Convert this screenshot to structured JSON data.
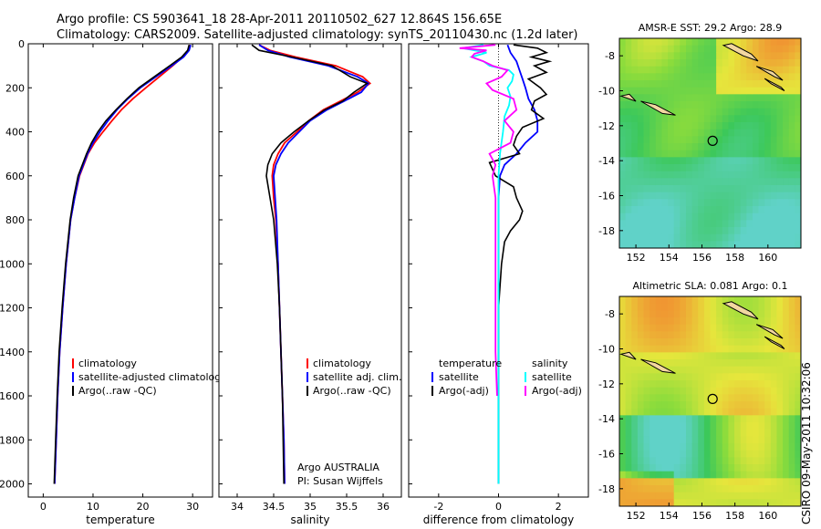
{
  "header": {
    "line1": "Argo profile: CS 5903641_18 28-Apr-2011 20110502_627 12.864S 156.65E",
    "line2": "Climatology: CARS2009. Satellite-adjusted climatology: synTS_20110430.nc (1.2d later)"
  },
  "side_stamp": "CSIRO 09-May-2011 10:32:06",
  "colors": {
    "climatology": "#ff0000",
    "satellite": "#0000ff",
    "argo": "#000000",
    "sal_sat": "#00ffff",
    "sal_argo": "#ff00ff",
    "marker": "#000000"
  },
  "chart_data": [
    {
      "id": "temperature",
      "type": "line",
      "xlabel": "temperature",
      "ylabel": "",
      "xlim": [
        -3,
        34
      ],
      "ylim": [
        2060,
        0
      ],
      "xticks": [
        0,
        10,
        20,
        30
      ],
      "yticks": [
        0,
        200,
        400,
        600,
        800,
        1000,
        1200,
        1400,
        1600,
        1800,
        2000
      ],
      "series": [
        {
          "name": "climatology",
          "color": "red",
          "depth": [
            5,
            30,
            60,
            100,
            150,
            200,
            250,
            300,
            350,
            400,
            450,
            500,
            600,
            700,
            800,
            1000,
            1200,
            1400,
            1600,
            1800,
            2000
          ],
          "values": [
            29.4,
            29.2,
            28.0,
            26.0,
            23.3,
            20.6,
            18.0,
            15.7,
            13.8,
            12.0,
            10.3,
            9.0,
            7.3,
            6.3,
            5.5,
            4.6,
            3.9,
            3.3,
            2.9,
            2.6,
            2.3
          ]
        },
        {
          "name": "satellite-adjusted climatology",
          "color": "blue",
          "depth": [
            5,
            30,
            60,
            100,
            150,
            200,
            250,
            300,
            350,
            400,
            450,
            500,
            600,
            700,
            800,
            1000,
            1200,
            1400,
            1600,
            1800,
            2000
          ],
          "values": [
            29.6,
            29.3,
            28.2,
            25.8,
            22.6,
            19.5,
            17.0,
            14.8,
            13.0,
            11.4,
            10.0,
            8.9,
            7.2,
            6.3,
            5.5,
            4.6,
            3.9,
            3.3,
            2.9,
            2.6,
            2.3
          ]
        },
        {
          "name": "Argo(..raw -QC)",
          "color": "black",
          "depth": [
            5,
            30,
            60,
            100,
            150,
            200,
            250,
            300,
            350,
            400,
            450,
            500,
            600,
            700,
            800,
            1000,
            1200,
            1400,
            1600,
            1800,
            2000
          ],
          "values": [
            29.3,
            29.0,
            27.8,
            25.4,
            22.3,
            19.2,
            16.8,
            14.6,
            12.6,
            11.0,
            9.7,
            8.7,
            7.0,
            6.1,
            5.4,
            4.5,
            3.8,
            3.2,
            2.8,
            2.5,
            2.2
          ]
        }
      ],
      "legend": [
        "climatology",
        "satellite-adjusted climatology",
        "Argo(..raw -QC)"
      ]
    },
    {
      "id": "salinity",
      "type": "line",
      "xlabel": "salinity",
      "ylabel": "",
      "xlim": [
        33.75,
        36.25
      ],
      "ylim": [
        2060,
        0
      ],
      "xticks": [
        34,
        34.5,
        35,
        35.5,
        36
      ],
      "yticks": [],
      "series": [
        {
          "name": "climatology",
          "color": "red",
          "depth": [
            5,
            30,
            60,
            100,
            150,
            180,
            220,
            260,
            300,
            350,
            400,
            450,
            500,
            550,
            600,
            700,
            800,
            1000,
            1200,
            1400,
            1600,
            1800,
            2000
          ],
          "values": [
            34.3,
            34.45,
            34.8,
            35.35,
            35.72,
            35.82,
            35.65,
            35.42,
            35.18,
            34.98,
            34.82,
            34.65,
            34.56,
            34.5,
            34.48,
            34.5,
            34.53,
            34.56,
            34.58,
            34.6,
            34.62,
            34.64,
            34.65
          ]
        },
        {
          "name": "satellite adj. clim.",
          "color": "blue",
          "depth": [
            5,
            30,
            60,
            100,
            150,
            180,
            220,
            260,
            300,
            350,
            400,
            450,
            500,
            550,
            600,
            700,
            800,
            1000,
            1200,
            1400,
            1600,
            1800,
            2000
          ],
          "values": [
            34.3,
            34.42,
            34.72,
            35.25,
            35.65,
            35.8,
            35.7,
            35.47,
            35.23,
            35.0,
            34.85,
            34.7,
            34.6,
            34.53,
            34.5,
            34.52,
            34.54,
            34.56,
            34.58,
            34.6,
            34.62,
            34.64,
            34.65
          ]
        },
        {
          "name": "Argo(..raw -QC)",
          "color": "black",
          "depth": [
            5,
            30,
            60,
            100,
            150,
            180,
            220,
            260,
            300,
            350,
            400,
            450,
            500,
            550,
            600,
            700,
            800,
            1000,
            1200,
            1400,
            1600,
            1800,
            2000
          ],
          "values": [
            34.2,
            34.3,
            34.75,
            35.3,
            35.55,
            35.78,
            35.6,
            35.45,
            35.2,
            34.98,
            34.78,
            34.6,
            34.48,
            34.42,
            34.4,
            34.45,
            34.5,
            34.55,
            34.58,
            34.6,
            34.62,
            34.63,
            34.64
          ]
        }
      ],
      "legend": [
        "climatology",
        "satellite adj. clim.",
        "Argo(..raw -QC)"
      ],
      "annotation": [
        "Argo AUSTRALIA",
        "PI: Susan Wijffels"
      ]
    },
    {
      "id": "difference",
      "type": "line",
      "xlabel": "difference from climatology",
      "ylabel": "",
      "xlim": [
        -3,
        3
      ],
      "ylim": [
        2060,
        0
      ],
      "xticks": [
        -2,
        0,
        2
      ],
      "yticks": [],
      "series": [
        {
          "name": "temperature satellite",
          "color": "blue",
          "depth": [
            5,
            40,
            80,
            120,
            160,
            200,
            250,
            300,
            350,
            400,
            450,
            500,
            550,
            600,
            700,
            800,
            1000,
            1400,
            2000
          ],
          "values": [
            0.3,
            0.4,
            0.6,
            0.7,
            0.8,
            0.9,
            1.0,
            1.2,
            1.3,
            1.3,
            0.9,
            0.6,
            0.2,
            0.05,
            0.0,
            0.0,
            0.0,
            0.0,
            0.0
          ]
        },
        {
          "name": "temperature Argo(-adj)",
          "color": "black",
          "depth": [
            5,
            20,
            40,
            60,
            80,
            100,
            130,
            160,
            200,
            230,
            260,
            300,
            340,
            380,
            420,
            460,
            500,
            540,
            600,
            650,
            700,
            760,
            800,
            850,
            900,
            1000,
            1200,
            1400,
            1700,
            2000
          ],
          "values": [
            0.5,
            1.3,
            1.6,
            1.1,
            1.7,
            1.2,
            1.6,
            1.0,
            1.4,
            1.6,
            1.2,
            1.1,
            1.5,
            0.8,
            0.6,
            0.5,
            0.7,
            -0.3,
            -0.1,
            0.5,
            0.6,
            0.8,
            0.7,
            0.4,
            0.2,
            0.1,
            0.0,
            0.0,
            0.0,
            0.0
          ]
        },
        {
          "name": "salinity satellite",
          "color": "cyan",
          "depth": [
            5,
            20,
            40,
            60,
            80,
            100,
            120,
            140,
            170,
            200,
            240,
            280,
            330,
            400,
            500,
            600,
            800,
            1000,
            1400,
            2000
          ],
          "values": [
            -0.5,
            -1.2,
            -0.4,
            -0.9,
            -0.5,
            -0.3,
            0.35,
            0.5,
            0.45,
            0.3,
            0.4,
            0.35,
            0.2,
            0.15,
            0.05,
            0.0,
            0.0,
            0.0,
            0.0,
            0.0
          ]
        },
        {
          "name": "salinity Argo(-adj)",
          "color": "magenta",
          "depth": [
            5,
            20,
            30,
            45,
            60,
            80,
            100,
            120,
            150,
            180,
            210,
            250,
            300,
            350,
            400,
            450,
            500,
            550,
            600,
            700,
            800,
            1000,
            1200,
            1400,
            1600
          ],
          "values": [
            -0.1,
            -1.3,
            -0.4,
            -0.8,
            -0.9,
            -0.5,
            -0.2,
            0.3,
            0.1,
            -0.4,
            -0.2,
            0.5,
            0.6,
            0.2,
            0.5,
            0.4,
            -0.3,
            -0.1,
            -0.2,
            -0.1,
            -0.1,
            -0.1,
            -0.1,
            -0.1,
            -0.05
          ]
        }
      ],
      "legend_left_title": "temperature",
      "legend_right_title": "salinity",
      "legend_left": [
        "satellite",
        "Argo(-adj)"
      ],
      "legend_right": [
        "satellite",
        "Argo(-adj)"
      ]
    },
    {
      "id": "sst_map",
      "type": "heatmap",
      "title": "AMSR-E SST: 29.2  Argo: 28.9",
      "xlim": [
        151,
        162
      ],
      "ylim": [
        -19,
        -7
      ],
      "xticks": [
        152,
        154,
        156,
        158,
        160
      ],
      "yticks": [
        -8,
        -10,
        -12,
        -14,
        -16,
        -18
      ],
      "float_position": {
        "lon": 156.65,
        "lat": -12.864
      }
    },
    {
      "id": "sla_map",
      "type": "heatmap",
      "title": "Altimetric SLA: 0.081  Argo: 0.1",
      "xlim": [
        151,
        162
      ],
      "ylim": [
        -19,
        -7
      ],
      "xticks": [
        152,
        154,
        156,
        158,
        160
      ],
      "yticks": [
        -8,
        -10,
        -12,
        -14,
        -16,
        -18
      ],
      "float_position": {
        "lon": 156.65,
        "lat": -12.864
      }
    }
  ]
}
